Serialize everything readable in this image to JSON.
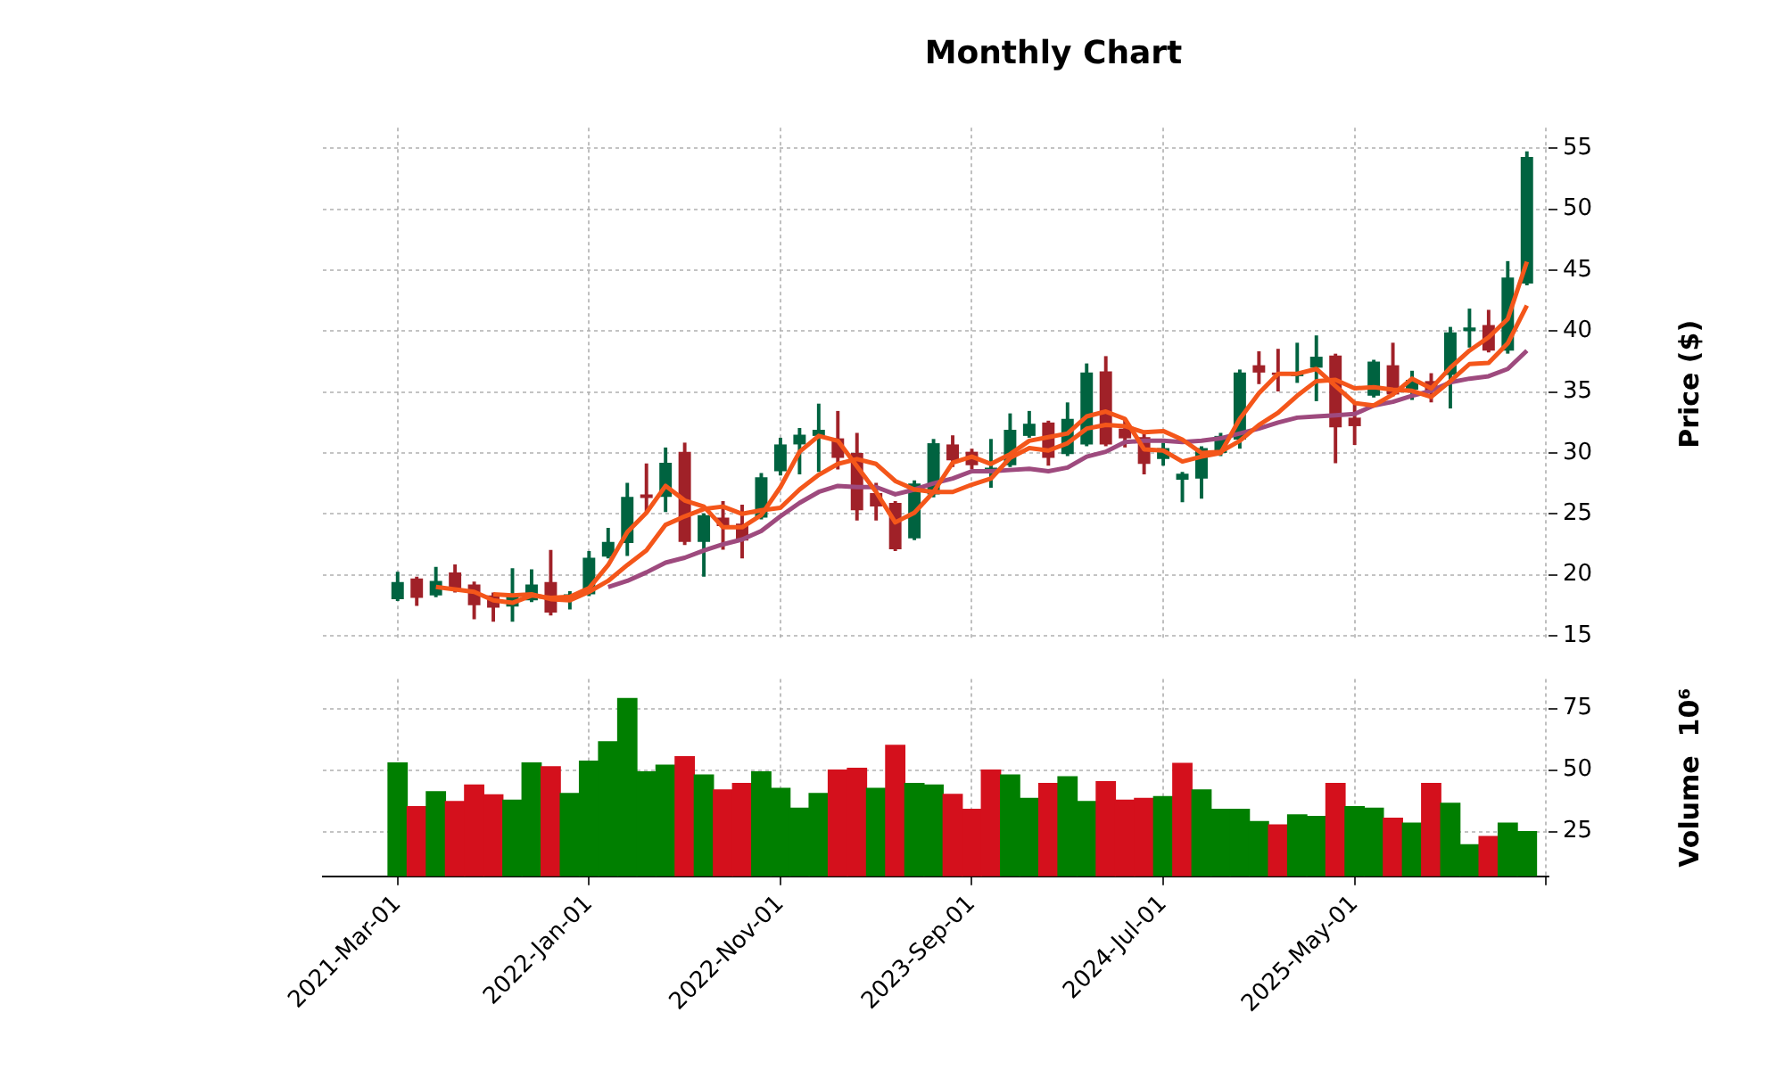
{
  "chart_data": [
    {
      "type": "candlestick",
      "title": "Monthly Chart",
      "ylabel": "Price ($)",
      "x": [
        "2021-03",
        "2021-04",
        "2021-05",
        "2021-06",
        "2021-07",
        "2021-08",
        "2021-09",
        "2021-10",
        "2021-11",
        "2021-12",
        "2022-01",
        "2022-02",
        "2022-03",
        "2022-04",
        "2022-05",
        "2022-06",
        "2022-07",
        "2022-08",
        "2022-09",
        "2022-10",
        "2022-11",
        "2022-12",
        "2023-01",
        "2023-02",
        "2023-03",
        "2023-04",
        "2023-05",
        "2023-06",
        "2023-07",
        "2023-08",
        "2023-09",
        "2023-10",
        "2023-11",
        "2023-12",
        "2024-01",
        "2024-02",
        "2024-03",
        "2024-04",
        "2024-05",
        "2024-06",
        "2024-07",
        "2024-08",
        "2024-09",
        "2024-10",
        "2024-11",
        "2024-12",
        "2025-01",
        "2025-02",
        "2025-03",
        "2025-04",
        "2025-05",
        "2025-06",
        "2025-07",
        "2025-08",
        "2025-09",
        "2025-10",
        "2025-11",
        "2025-12",
        "2026-01",
        "2026-02"
      ],
      "ohlc": [
        [
          18.0,
          20.2,
          17.9,
          19.4
        ],
        [
          19.7,
          19.8,
          17.5,
          18.1
        ],
        [
          18.3,
          20.6,
          18.2,
          19.5
        ],
        [
          20.2,
          20.8,
          18.6,
          18.8
        ],
        [
          19.2,
          19.4,
          16.4,
          17.5
        ],
        [
          18.3,
          18.5,
          16.2,
          17.3
        ],
        [
          17.4,
          20.5,
          16.2,
          18.3
        ],
        [
          17.9,
          20.4,
          17.8,
          19.2
        ],
        [
          19.4,
          22.0,
          16.7,
          16.9
        ],
        [
          18.1,
          18.6,
          17.2,
          18.4
        ],
        [
          18.4,
          21.9,
          18.3,
          21.4
        ],
        [
          21.5,
          23.8,
          21.4,
          22.7
        ],
        [
          22.6,
          27.5,
          21.6,
          26.4
        ],
        [
          26.6,
          29.1,
          25.2,
          26.3
        ],
        [
          26.4,
          30.4,
          25.2,
          29.2
        ],
        [
          30.1,
          30.8,
          22.5,
          22.7
        ],
        [
          22.7,
          25.0,
          19.9,
          24.9
        ],
        [
          24.7,
          26.0,
          22.1,
          24.0
        ],
        [
          24.2,
          25.7,
          21.4,
          22.8
        ],
        [
          24.7,
          28.3,
          24.6,
          28.0
        ],
        [
          28.5,
          31.2,
          28.2,
          30.7
        ],
        [
          30.7,
          32.0,
          28.3,
          31.5
        ],
        [
          31.4,
          34.0,
          28.5,
          31.9
        ],
        [
          31.2,
          33.4,
          28.7,
          29.6
        ],
        [
          30.0,
          31.6,
          24.5,
          25.3
        ],
        [
          26.7,
          27.5,
          24.5,
          25.6
        ],
        [
          25.9,
          26.0,
          22.0,
          22.1
        ],
        [
          23.0,
          27.7,
          22.9,
          27.5
        ],
        [
          26.6,
          31.1,
          26.4,
          30.8
        ],
        [
          30.7,
          31.4,
          28.9,
          29.4
        ],
        [
          30.1,
          30.3,
          28.7,
          29.0
        ],
        [
          28.5,
          31.1,
          27.2,
          28.8
        ],
        [
          29.0,
          33.2,
          28.9,
          31.9
        ],
        [
          31.4,
          33.4,
          31.3,
          32.4
        ],
        [
          32.5,
          32.6,
          29.0,
          29.6
        ],
        [
          29.9,
          34.1,
          29.8,
          32.8
        ],
        [
          30.7,
          37.3,
          30.6,
          36.6
        ],
        [
          36.7,
          37.9,
          30.6,
          30.7
        ],
        [
          32.0,
          32.8,
          30.5,
          31.2
        ],
        [
          31.3,
          31.8,
          28.3,
          29.1
        ],
        [
          29.5,
          30.8,
          29.0,
          30.4
        ],
        [
          27.8,
          28.4,
          26.0,
          28.3
        ],
        [
          27.9,
          30.5,
          26.3,
          30.4
        ],
        [
          30.0,
          31.6,
          29.8,
          31.4
        ],
        [
          31.1,
          36.8,
          30.4,
          36.6
        ],
        [
          37.2,
          38.3,
          35.7,
          36.6
        ],
        [
          36.6,
          38.5,
          35.1,
          36.4
        ],
        [
          36.3,
          39.0,
          35.8,
          36.5
        ],
        [
          37.0,
          39.6,
          34.3,
          37.9
        ],
        [
          38.0,
          38.1,
          29.2,
          32.1
        ],
        [
          32.9,
          34.0,
          30.7,
          32.2
        ],
        [
          34.7,
          37.6,
          34.6,
          37.5
        ],
        [
          37.2,
          39.0,
          34.7,
          34.8
        ],
        [
          35.2,
          36.7,
          34.4,
          36.0
        ],
        [
          35.9,
          36.5,
          34.2,
          35.1
        ],
        [
          36.4,
          40.3,
          33.7,
          39.9
        ],
        [
          40.0,
          41.8,
          38.7,
          40.3
        ],
        [
          40.5,
          41.7,
          38.3,
          38.4
        ],
        [
          38.4,
          45.7,
          38.2,
          44.4
        ],
        [
          43.9,
          54.7,
          43.8,
          54.3
        ]
      ],
      "colors": [
        "#006340",
        "#a02128",
        "#006340",
        "#a02128",
        "#a02128",
        "#a02128",
        "#006340",
        "#006340",
        "#a02128",
        "#006340",
        "#006340",
        "#006340",
        "#006340",
        "#a02128",
        "#006340",
        "#a02128",
        "#006340",
        "#a02128",
        "#a02128",
        "#006340",
        "#006340",
        "#006340",
        "#006340",
        "#a02128",
        "#a02128",
        "#a02128",
        "#a02128",
        "#006340",
        "#006340",
        "#a02128",
        "#a02128",
        "#006340",
        "#006340",
        "#006340",
        "#a02128",
        "#006340",
        "#006340",
        "#a02128",
        "#a02128",
        "#a02128",
        "#006340",
        "#006340",
        "#006340",
        "#006340",
        "#006340",
        "#a02128",
        "#a02128",
        "#006340",
        "#006340",
        "#a02128",
        "#a02128",
        "#006340",
        "#a02128",
        "#006340",
        "#a02128",
        "#006340",
        "#006340",
        "#a02128",
        "#006340",
        "#006340"
      ],
      "series": [
        {
          "type": "line",
          "color": "#f4561a",
          "values": [
            null,
            null,
            19.0,
            18.8,
            18.6,
            17.9,
            17.7,
            18.3,
            18.1,
            18.2,
            18.9,
            20.8,
            23.5,
            25.1,
            27.3,
            26.1,
            25.6,
            23.9,
            23.9,
            24.9,
            27.2,
            30.1,
            31.4,
            31.0,
            28.9,
            26.8,
            24.3,
            25.1,
            26.8,
            29.2,
            29.7,
            29.1,
            29.9,
            31.0,
            31.3,
            31.6,
            33.0,
            33.4,
            32.8,
            30.3,
            30.2,
            29.3,
            29.7,
            30.0,
            32.8,
            34.9,
            36.5,
            36.5,
            36.9,
            35.5,
            34.1,
            33.9,
            34.8,
            36.1,
            35.3,
            37.0,
            38.4,
            39.5,
            41.0,
            45.7
          ]
        },
        {
          "type": "line",
          "color": "#f4561a",
          "values": [
            null,
            null,
            null,
            null,
            null,
            18.4,
            18.3,
            18.4,
            18.0,
            17.9,
            18.6,
            19.5,
            20.8,
            22.0,
            24.1,
            24.8,
            25.4,
            25.6,
            25.0,
            25.3,
            25.5,
            27.0,
            28.2,
            29.1,
            29.5,
            29.1,
            27.7,
            27.0,
            26.8,
            26.8,
            27.4,
            27.9,
            29.6,
            30.4,
            30.2,
            30.8,
            32.0,
            32.3,
            32.2,
            31.7,
            31.8,
            31.1,
            30.0,
            30.1,
            31.0,
            32.3,
            33.3,
            34.7,
            35.9,
            36.0,
            35.3,
            35.4,
            35.2,
            35.1,
            34.6,
            35.9,
            37.3,
            37.4,
            39.0,
            42.1
          ]
        },
        {
          "type": "line",
          "color": "#9e4a7e",
          "values": [
            null,
            null,
            null,
            null,
            null,
            null,
            null,
            null,
            null,
            null,
            null,
            19.0,
            19.5,
            20.2,
            21.0,
            21.4,
            22.0,
            22.5,
            22.9,
            23.6,
            24.8,
            25.9,
            26.8,
            27.3,
            27.2,
            27.2,
            26.6,
            27.0,
            27.5,
            27.9,
            28.5,
            28.5,
            28.6,
            28.7,
            28.5,
            28.8,
            29.7,
            30.1,
            30.9,
            31.0,
            31.0,
            30.9,
            31.0,
            31.2,
            31.6,
            32.0,
            32.5,
            32.9,
            33.0,
            33.1,
            33.2,
            33.9,
            34.2,
            34.7,
            35.1,
            35.8,
            36.1,
            36.3,
            36.9,
            38.4
          ]
        }
      ],
      "xlim": [
        "2020-11-04",
        "2026-03-05"
      ],
      "xticks": [
        {
          "value": "2021-03-01",
          "label": null
        },
        {
          "value": "2022-01-01",
          "label": null
        },
        {
          "value": "2022-11-01",
          "label": null
        },
        {
          "value": "2023-09-01",
          "label": null
        },
        {
          "value": "2024-07-01",
          "label": null
        },
        {
          "value": "2025-05-01",
          "label": null
        },
        {
          "value": "2026-03-01",
          "label": null
        }
      ],
      "ylim": [
        14.6,
        56.7
      ],
      "yticks": [
        15,
        20,
        25,
        30,
        35,
        40,
        45,
        50,
        55
      ],
      "grid": true,
      "tick_labels": "y"
    },
    {
      "type": "bar",
      "ylabel": "Volume  10⁶",
      "x": [
        "2021-03",
        "2021-04",
        "2021-05",
        "2021-06",
        "2021-07",
        "2021-08",
        "2021-09",
        "2021-10",
        "2021-11",
        "2021-12",
        "2022-01",
        "2022-02",
        "2022-03",
        "2022-04",
        "2022-05",
        "2022-06",
        "2022-07",
        "2022-08",
        "2022-09",
        "2022-10",
        "2022-11",
        "2022-12",
        "2023-01",
        "2023-02",
        "2023-03",
        "2023-04",
        "2023-05",
        "2023-06",
        "2023-07",
        "2023-08",
        "2023-09",
        "2023-10",
        "2023-11",
        "2023-12",
        "2024-01",
        "2024-02",
        "2024-03",
        "2024-04",
        "2024-05",
        "2024-06",
        "2024-07",
        "2024-08",
        "2024-09",
        "2024-10",
        "2024-11",
        "2024-12",
        "2025-01",
        "2025-02",
        "2025-03",
        "2025-04",
        "2025-05",
        "2025-06",
        "2025-07",
        "2025-08",
        "2025-09",
        "2025-10",
        "2025-11",
        "2025-12",
        "2026-01",
        "2026-02"
      ],
      "values": [
        52.9,
        35.1,
        41.2,
        37.2,
        43.9,
        39.9,
        37.8,
        52.9,
        51.4,
        40.5,
        53.6,
        61.5,
        79.1,
        49.3,
        52.0,
        55.4,
        48.0,
        41.9,
        44.6,
        49.3,
        42.6,
        34.5,
        40.5,
        50.0,
        50.7,
        42.6,
        60.1,
        44.6,
        43.9,
        40.1,
        34.0,
        50.0,
        48.0,
        38.5,
        44.6,
        47.3,
        37.2,
        45.3,
        37.8,
        38.5,
        39.2,
        52.7,
        41.9,
        34.0,
        34.0,
        29.1,
        27.7,
        31.8,
        31.1,
        44.6,
        35.1,
        34.5,
        30.4,
        28.4,
        44.6,
        36.5,
        19.6,
        23.0,
        28.4,
        25.0
      ],
      "colors": [
        "#007f00",
        "#d4101c",
        "#007f00",
        "#d4101c",
        "#d4101c",
        "#d4101c",
        "#007f00",
        "#007f00",
        "#d4101c",
        "#007f00",
        "#007f00",
        "#007f00",
        "#007f00",
        "#007f00",
        "#007f00",
        "#d4101c",
        "#007f00",
        "#d4101c",
        "#d4101c",
        "#007f00",
        "#007f00",
        "#007f00",
        "#007f00",
        "#d4101c",
        "#d4101c",
        "#007f00",
        "#d4101c",
        "#007f00",
        "#007f00",
        "#d4101c",
        "#d4101c",
        "#d4101c",
        "#007f00",
        "#007f00",
        "#d4101c",
        "#007f00",
        "#007f00",
        "#d4101c",
        "#d4101c",
        "#d4101c",
        "#007f00",
        "#d4101c",
        "#007f00",
        "#007f00",
        "#007f00",
        "#007f00",
        "#d4101c",
        "#007f00",
        "#007f00",
        "#d4101c",
        "#007f00",
        "#007f00",
        "#d4101c",
        "#007f00",
        "#d4101c",
        "#007f00",
        "#007f00",
        "#d4101c",
        "#007f00",
        "#007f00"
      ],
      "xlim": [
        "2020-11-04",
        "2026-03-05"
      ],
      "xticks": [
        {
          "value": "2021-03-01",
          "label": "2021-Mar-01"
        },
        {
          "value": "2022-01-01",
          "label": "2022-Jan-01"
        },
        {
          "value": "2022-11-01",
          "label": "2022-Nov-01"
        },
        {
          "value": "2023-09-01",
          "label": "2023-Sep-01"
        },
        {
          "value": "2024-07-01",
          "label": "2024-Jul-01"
        },
        {
          "value": "2025-05-01",
          "label": "2025-May-01"
        },
        {
          "value": "2026-03-01",
          "label": null
        }
      ],
      "ylim": [
        6.8,
        87
      ],
      "yticks": [
        25,
        50,
        75
      ],
      "grid": true
    }
  ]
}
